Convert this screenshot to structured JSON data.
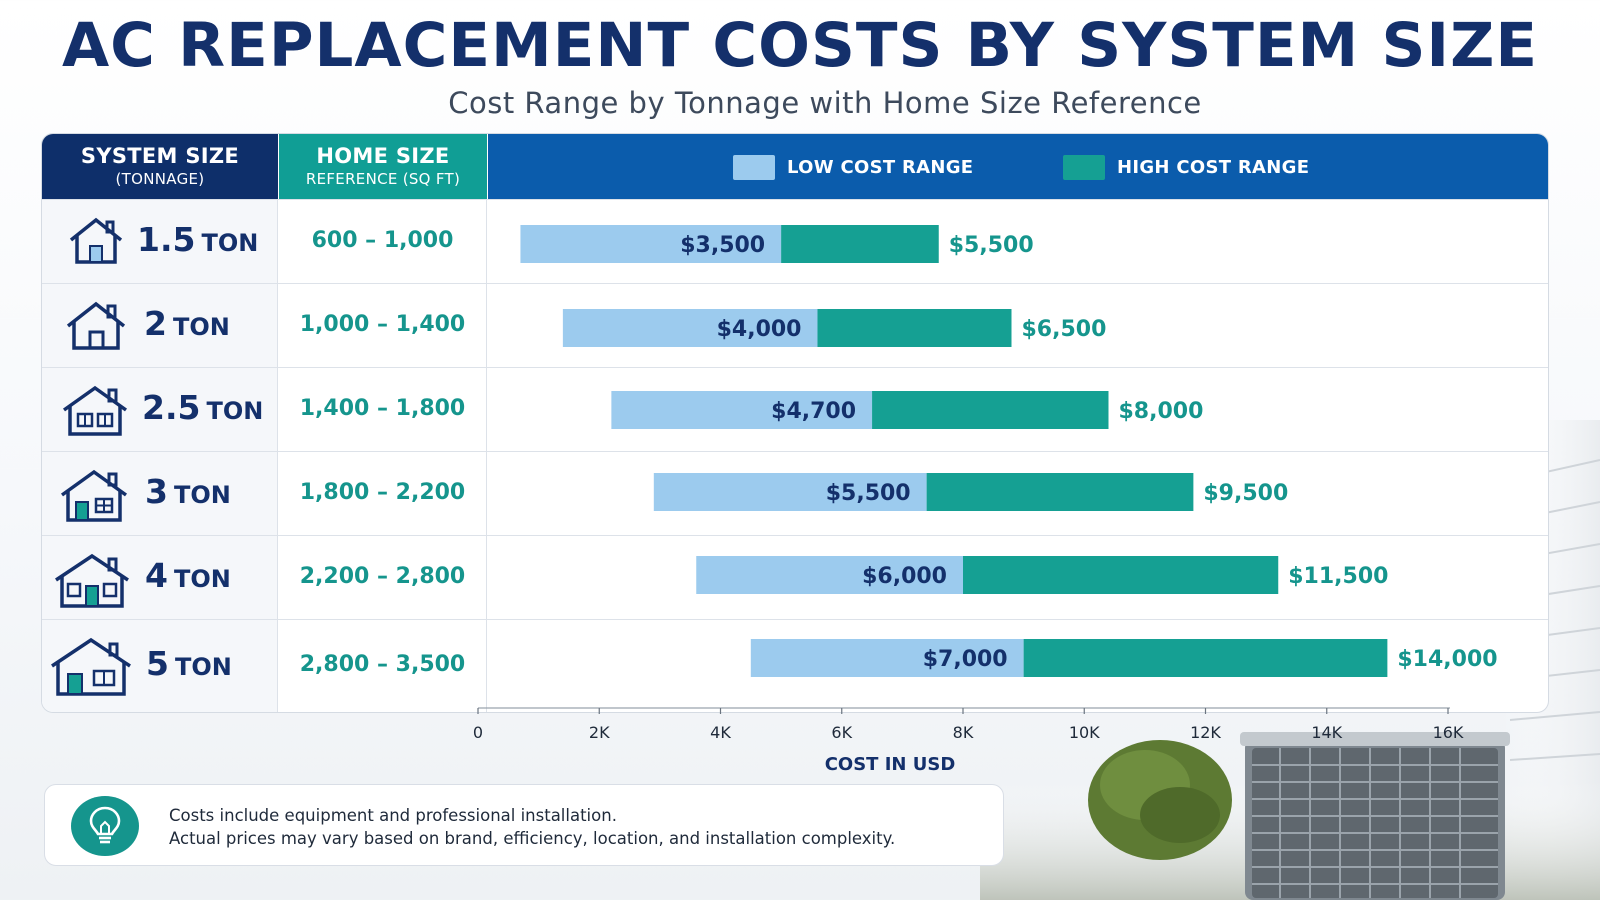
{
  "header": {
    "title": "AC REPLACEMENT COSTS BY SYSTEM SIZE",
    "subtitle": "Cost Range by Tonnage with Home Size Reference"
  },
  "table_header": {
    "system_size": "SYSTEM SIZE",
    "system_size_sub": "(TONNAGE)",
    "home_size": "HOME SIZE",
    "home_size_sub": "REFERENCE (SQ FT)"
  },
  "rows": [
    {
      "num": "1.5",
      "unit": "TON",
      "home": "600 – 1,000",
      "icon": "house-small-icon"
    },
    {
      "num": "2",
      "unit": "TON",
      "home": "1,000 – 1,400",
      "icon": "house-icon"
    },
    {
      "num": "2.5",
      "unit": "TON",
      "home": "1,400 – 1,800",
      "icon": "house-window-icon"
    },
    {
      "num": "3",
      "unit": "TON",
      "home": "1,800 – 2,200",
      "icon": "house-door-window-icon"
    },
    {
      "num": "4",
      "unit": "TON",
      "home": "2,200 – 2,800",
      "icon": "house-wide-icon"
    },
    {
      "num": "5",
      "unit": "TON",
      "home": "2,800 – 3,500",
      "icon": "house-large-icon"
    }
  ],
  "chart_data": {
    "type": "bar",
    "orientation": "horizontal-range",
    "categories": [
      "1.5 TON",
      "2 TON",
      "2.5 TON",
      "3 TON",
      "4 TON",
      "5 TON"
    ],
    "series": [
      {
        "name": "LOW COST RANGE",
        "color": "#9ccbee",
        "start": [
          700,
          1400,
          2200,
          2900,
          3600,
          4500
        ],
        "end": [
          5000,
          5600,
          6500,
          7400,
          8000,
          9000
        ],
        "labels": [
          "$3,500",
          "$4,000",
          "$4,700",
          "$5,500",
          "$6,000",
          "$7,000"
        ]
      },
      {
        "name": "HIGH COST RANGE",
        "color": "#15a093",
        "start": [
          5000,
          5600,
          6500,
          7400,
          8000,
          9000
        ],
        "end": [
          7600,
          8800,
          10400,
          11800,
          13200,
          15000
        ],
        "labels": [
          "$5,500",
          "$6,500",
          "$8,000",
          "$9,500",
          "$11,500",
          "$14,000"
        ]
      }
    ],
    "xlabel": "COST IN USD",
    "xticks": [
      0,
      2000,
      4000,
      6000,
      8000,
      10000,
      12000,
      14000,
      16000
    ],
    "xtick_labels": [
      "0",
      "2K",
      "4K",
      "6K",
      "8K",
      "10K",
      "12K",
      "14K",
      "16K"
    ],
    "xlim": [
      0,
      16000
    ],
    "legend": "top",
    "grid": false
  },
  "note": {
    "line1": "Costs include equipment and professional installation.",
    "line2": "Actual prices may vary based on brand, efficiency, location, and installation complexity.",
    "icon": "lightbulb-icon"
  },
  "colors": {
    "navy": "#0e2f6a",
    "teal": "#109e95",
    "blue": "#0b5cac",
    "light_bar": "#9ccbee",
    "dark_bar": "#15a093"
  }
}
